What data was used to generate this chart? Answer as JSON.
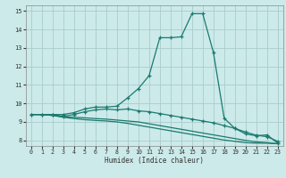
{
  "xlabel": "Humidex (Indice chaleur)",
  "bg_color": "#cceaea",
  "grid_color": "#aacccc",
  "line_color": "#1a7a6e",
  "xlim": [
    -0.5,
    23.5
  ],
  "ylim": [
    7.7,
    15.3
  ],
  "xticks": [
    0,
    1,
    2,
    3,
    4,
    5,
    6,
    7,
    8,
    9,
    10,
    11,
    12,
    13,
    14,
    15,
    16,
    17,
    18,
    19,
    20,
    21,
    22,
    23
  ],
  "yticks": [
    8,
    9,
    10,
    11,
    12,
    13,
    14,
    15
  ],
  "line1_x": [
    0,
    1,
    2,
    3,
    4,
    5,
    6,
    7,
    8,
    9,
    10,
    11,
    12,
    13,
    14,
    15,
    16,
    17,
    18,
    19,
    20,
    21,
    22,
    23
  ],
  "line1_y": [
    9.4,
    9.4,
    9.4,
    9.4,
    9.5,
    9.7,
    9.8,
    9.8,
    9.85,
    10.3,
    10.8,
    11.5,
    13.55,
    13.55,
    13.6,
    14.85,
    14.85,
    12.75,
    9.2,
    8.65,
    8.35,
    8.25,
    8.3,
    7.85
  ],
  "line2_x": [
    0,
    1,
    2,
    3,
    4,
    5,
    6,
    7,
    8,
    9,
    10,
    11,
    12,
    13,
    14,
    15,
    16,
    17,
    18,
    19,
    20,
    21,
    22,
    23
  ],
  "line2_y": [
    9.4,
    9.4,
    9.4,
    9.3,
    9.4,
    9.55,
    9.65,
    9.7,
    9.65,
    9.7,
    9.6,
    9.55,
    9.45,
    9.35,
    9.25,
    9.15,
    9.05,
    8.95,
    8.8,
    8.65,
    8.45,
    8.28,
    8.2,
    7.95
  ],
  "line3_x": [
    0,
    1,
    2,
    3,
    4,
    5,
    6,
    7,
    8,
    9,
    10,
    11,
    12,
    13,
    14,
    15,
    16,
    17,
    18,
    19,
    20,
    21,
    22,
    23
  ],
  "line3_y": [
    9.4,
    9.4,
    9.35,
    9.28,
    9.25,
    9.22,
    9.18,
    9.15,
    9.1,
    9.05,
    9.0,
    8.9,
    8.8,
    8.7,
    8.6,
    8.5,
    8.4,
    8.3,
    8.2,
    8.1,
    8.0,
    7.92,
    7.88,
    7.82
  ],
  "line4_x": [
    0,
    1,
    2,
    3,
    4,
    5,
    6,
    7,
    8,
    9,
    10,
    11,
    12,
    13,
    14,
    15,
    16,
    17,
    18,
    19,
    20,
    21,
    22,
    23
  ],
  "line4_y": [
    9.4,
    9.4,
    9.35,
    9.25,
    9.18,
    9.12,
    9.08,
    9.05,
    9.0,
    8.92,
    8.82,
    8.72,
    8.62,
    8.52,
    8.42,
    8.32,
    8.22,
    8.12,
    8.02,
    7.95,
    7.88,
    7.85,
    7.85,
    7.82
  ]
}
